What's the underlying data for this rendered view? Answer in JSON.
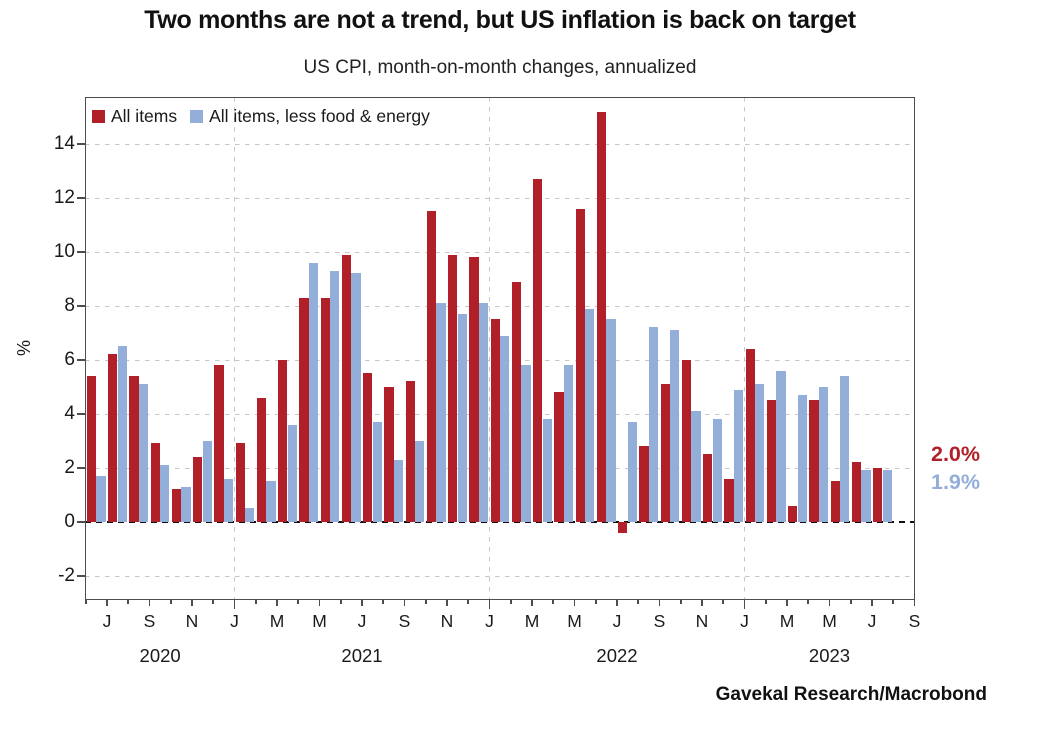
{
  "title": "Two months are not a trend, but US inflation is back on target",
  "subtitle": "US CPI, month-on-month changes, annualized",
  "source": "Gavekal Research/Macrobond",
  "colors": {
    "all_items": "#b11f29",
    "core": "#92aed9",
    "grid": "#c7c7c7",
    "zero_line": "#111111",
    "axis": "#4d4d4d",
    "text": "#1a1a1a"
  },
  "end_labels": [
    {
      "text": "2.0%",
      "series": "All items",
      "color": "#b11f29"
    },
    {
      "text": "1.9%",
      "series": "All items, less food & energy",
      "color": "#92aed9"
    }
  ],
  "chart_data": {
    "type": "bar",
    "title": "US CPI, month-on-month changes, annualized",
    "xlabel": "",
    "ylabel": "%",
    "ylim": [
      -2.9,
      15.74
    ],
    "yticks": [
      14,
      12,
      10,
      8,
      6,
      4,
      2,
      0,
      -2
    ],
    "grid": true,
    "legend_position": "top-left",
    "categories": [
      "Jun 2020",
      "Jul 2020",
      "Aug 2020",
      "Sep 2020",
      "Oct 2020",
      "Nov 2020",
      "Dec 2020",
      "Jan 2021",
      "Feb 2021",
      "Mar 2021",
      "Apr 2021",
      "May 2021",
      "Jun 2021",
      "Jul 2021",
      "Aug 2021",
      "Sep 2021",
      "Oct 2021",
      "Nov 2021",
      "Dec 2021",
      "Jan 2022",
      "Feb 2022",
      "Mar 2022",
      "Apr 2022",
      "May 2022",
      "Jun 2022",
      "Jul 2022",
      "Aug 2022",
      "Sep 2022",
      "Oct 2022",
      "Nov 2022",
      "Dec 2022",
      "Jan 2023",
      "Feb 2023",
      "Mar 2023",
      "Apr 2023",
      "May 2023",
      "Jun 2023",
      "Jul 2023"
    ],
    "series": [
      {
        "name": "All items",
        "color": "#b11f29",
        "values": [
          5.4,
          6.2,
          5.4,
          2.9,
          1.2,
          2.4,
          5.8,
          2.9,
          4.6,
          6.0,
          8.3,
          8.3,
          9.9,
          5.5,
          5.0,
          5.2,
          11.5,
          9.9,
          9.8,
          7.5,
          8.9,
          12.7,
          4.8,
          11.6,
          15.2,
          -0.4,
          2.8,
          5.1,
          6.0,
          2.5,
          1.6,
          6.4,
          4.5,
          0.6,
          4.5,
          1.5,
          2.2,
          2.0
        ]
      },
      {
        "name": "All items, less food & energy",
        "color": "#92aed9",
        "values": [
          1.7,
          6.5,
          5.1,
          2.1,
          1.3,
          3.0,
          1.6,
          0.5,
          1.5,
          3.6,
          9.6,
          9.3,
          9.2,
          3.7,
          2.3,
          3.0,
          8.1,
          7.7,
          8.1,
          6.9,
          5.8,
          3.8,
          5.8,
          7.9,
          7.5,
          3.7,
          7.2,
          7.1,
          4.1,
          3.8,
          4.9,
          5.1,
          5.6,
          4.7,
          5.0,
          5.4,
          1.9,
          1.9
        ]
      }
    ],
    "x_tick_labels": [
      {
        "i": 1,
        "label": "J"
      },
      {
        "i": 3,
        "label": "S"
      },
      {
        "i": 5,
        "label": "N"
      },
      {
        "i": 7,
        "label": "J"
      },
      {
        "i": 9,
        "label": "M"
      },
      {
        "i": 11,
        "label": "M"
      },
      {
        "i": 13,
        "label": "J"
      },
      {
        "i": 15,
        "label": "S"
      },
      {
        "i": 17,
        "label": "N"
      },
      {
        "i": 19,
        "label": "J"
      },
      {
        "i": 21,
        "label": "M"
      },
      {
        "i": 23,
        "label": "M"
      },
      {
        "i": 25,
        "label": "J"
      },
      {
        "i": 27,
        "label": "S"
      },
      {
        "i": 29,
        "label": "N"
      },
      {
        "i": 31,
        "label": "J"
      },
      {
        "i": 33,
        "label": "M"
      },
      {
        "i": 35,
        "label": "M"
      },
      {
        "i": 37,
        "label": "J"
      },
      {
        "i": 39,
        "label": "S"
      }
    ],
    "year_labels": [
      {
        "label": "2020",
        "i": 3.5
      },
      {
        "label": "2021",
        "i": 13
      },
      {
        "label": "2022",
        "i": 25
      },
      {
        "label": "2023",
        "i": 35
      }
    ],
    "year_gridline_indices": [
      7,
      19,
      31
    ],
    "n_month_slots": 39
  }
}
